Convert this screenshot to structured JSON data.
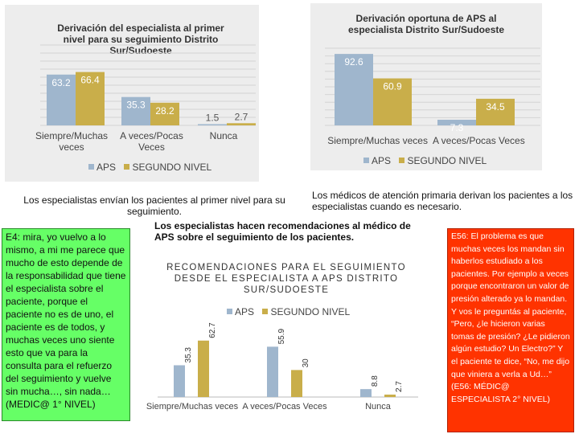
{
  "colors": {
    "aps": "#9fb6cd",
    "segundo": "#c9ae4a",
    "grid": "#d4d4d4",
    "green_box": "#66ff66",
    "orange_box": "#ff3300",
    "panel": "#ededed"
  },
  "chart_data": [
    {
      "type": "bar",
      "title": "Derivación del especialista al primer nivel para su seguimiento Distrito Sur/Sudoeste",
      "categories": [
        "Siempre/Muchas veces",
        "A veces/Pocas Veces",
        "Nunca"
      ],
      "series": [
        {
          "name": "APS",
          "values": [
            63.2,
            35.3,
            1.5
          ]
        },
        {
          "name": "SEGUNDO NIVEL",
          "values": [
            66.4,
            28.2,
            2.7
          ]
        }
      ],
      "ylim": [
        0,
        100
      ],
      "grid": true,
      "legend": "bottom"
    },
    {
      "type": "bar",
      "title": "Derivación oportuna de APS al especialista Distrito Sur/Sudoeste",
      "categories": [
        "Siempre/Muchas veces",
        "A veces/Pocas Veces"
      ],
      "series": [
        {
          "name": "APS",
          "values": [
            92.6,
            7.3
          ]
        },
        {
          "name": "SEGUNDO NIVEL",
          "values": [
            60.9,
            34.5
          ]
        }
      ],
      "ylim": [
        0,
        100
      ],
      "grid": true,
      "legend": "bottom"
    },
    {
      "type": "bar",
      "title": "RECOMENDACIONES PARA EL SEGUIMIENTO DESDE EL ESPECIALISTA A APS DISTRITO SUR/SUDOESTE",
      "categories": [
        "Siempre/Muchas veces",
        "A veces/Pocas Veces",
        "Nunca"
      ],
      "series": [
        {
          "name": "APS",
          "values": [
            35.3,
            55.9,
            8.8
          ]
        },
        {
          "name": "SEGUNDO NIVEL",
          "values": [
            62.7,
            30,
            2.7
          ]
        }
      ],
      "ylim": [
        0,
        100
      ],
      "grid": false,
      "legend": "top"
    }
  ],
  "labels": {
    "chart1": {
      "title": "Derivación del especialista al primer nivel para su seguimiento Distrito Sur/Sudoeste",
      "values": [
        "63.2",
        "66.4",
        "35.3",
        "28.2",
        "1.5",
        "2.7"
      ],
      "cat1": "Siempre/Muchas veces",
      "cat2": "A veces/Pocas Veces",
      "cat3": "Nunca",
      "legend_aps": "APS",
      "legend_segundo": "SEGUNDO NIVEL"
    },
    "chart2": {
      "title": "Derivación oportuna de APS al especialista Distrito Sur/Sudoeste",
      "values": [
        "92.6",
        "60.9",
        "7.3",
        "34.5"
      ],
      "categories_line": "Siempre/Muchas veces  A veces/Pocas Veces",
      "legend_aps": "APS",
      "legend_segundo": "SEGUNDO NIVEL"
    },
    "chart3": {
      "title": "RECOMENDACIONES PARA EL SEGUIMIENTO DESDE EL ESPECIALISTA A APS DISTRITO SUR/SUDOESTE",
      "values": [
        "35.3",
        "62.7",
        "55.9",
        "30",
        "8.8",
        "2.7"
      ],
      "cat1": "Siempre/Muchas veces",
      "cat2": "A veces/Pocas Veces",
      "cat3": "Nunca",
      "legend_aps": "APS",
      "legend_segundo": "SEGUNDO NIVEL"
    }
  },
  "captions": {
    "left": "Los especialistas envían los pacientes al primer nivel para su seguimiento.",
    "right": "Los médicos de atención primaria derivan los pacientes a los especialistas cuando es necesario.",
    "center": "Los especialistas hacen recomendaciones al médico de APS sobre el seguimiento de los pacientes."
  },
  "quotes": {
    "e4": "E4: mira, yo vuelvo a lo mismo, a mi me parece que mucho de esto depende de la responsabilidad que tiene el especialista sobre el paciente, porque el paciente no es de uno, el paciente es de todos, y muchas veces uno siente esto que va para la consulta para el refuerzo del seguimiento y vuelve sin mucha…, sin nada… (MEDIC@ 1° NIVEL)",
    "e56": "E56: El problema es que muchas veces los mandan sin haberlos estudiado a los pacientes. Por ejemplo a veces porque encontraron un valor de presión alterado ya lo mandan. Y vos le preguntás al paciente, “Pero, ¿le hicieron varias tomas de presión? ¿Le pidieron algún estudio? Un Electro?” Y el paciente te dice, “No, me dijo que viniera a verla a Ud…” (E56: MÉDIC@ ESPECIALISTA 2° NIVEL)"
  }
}
